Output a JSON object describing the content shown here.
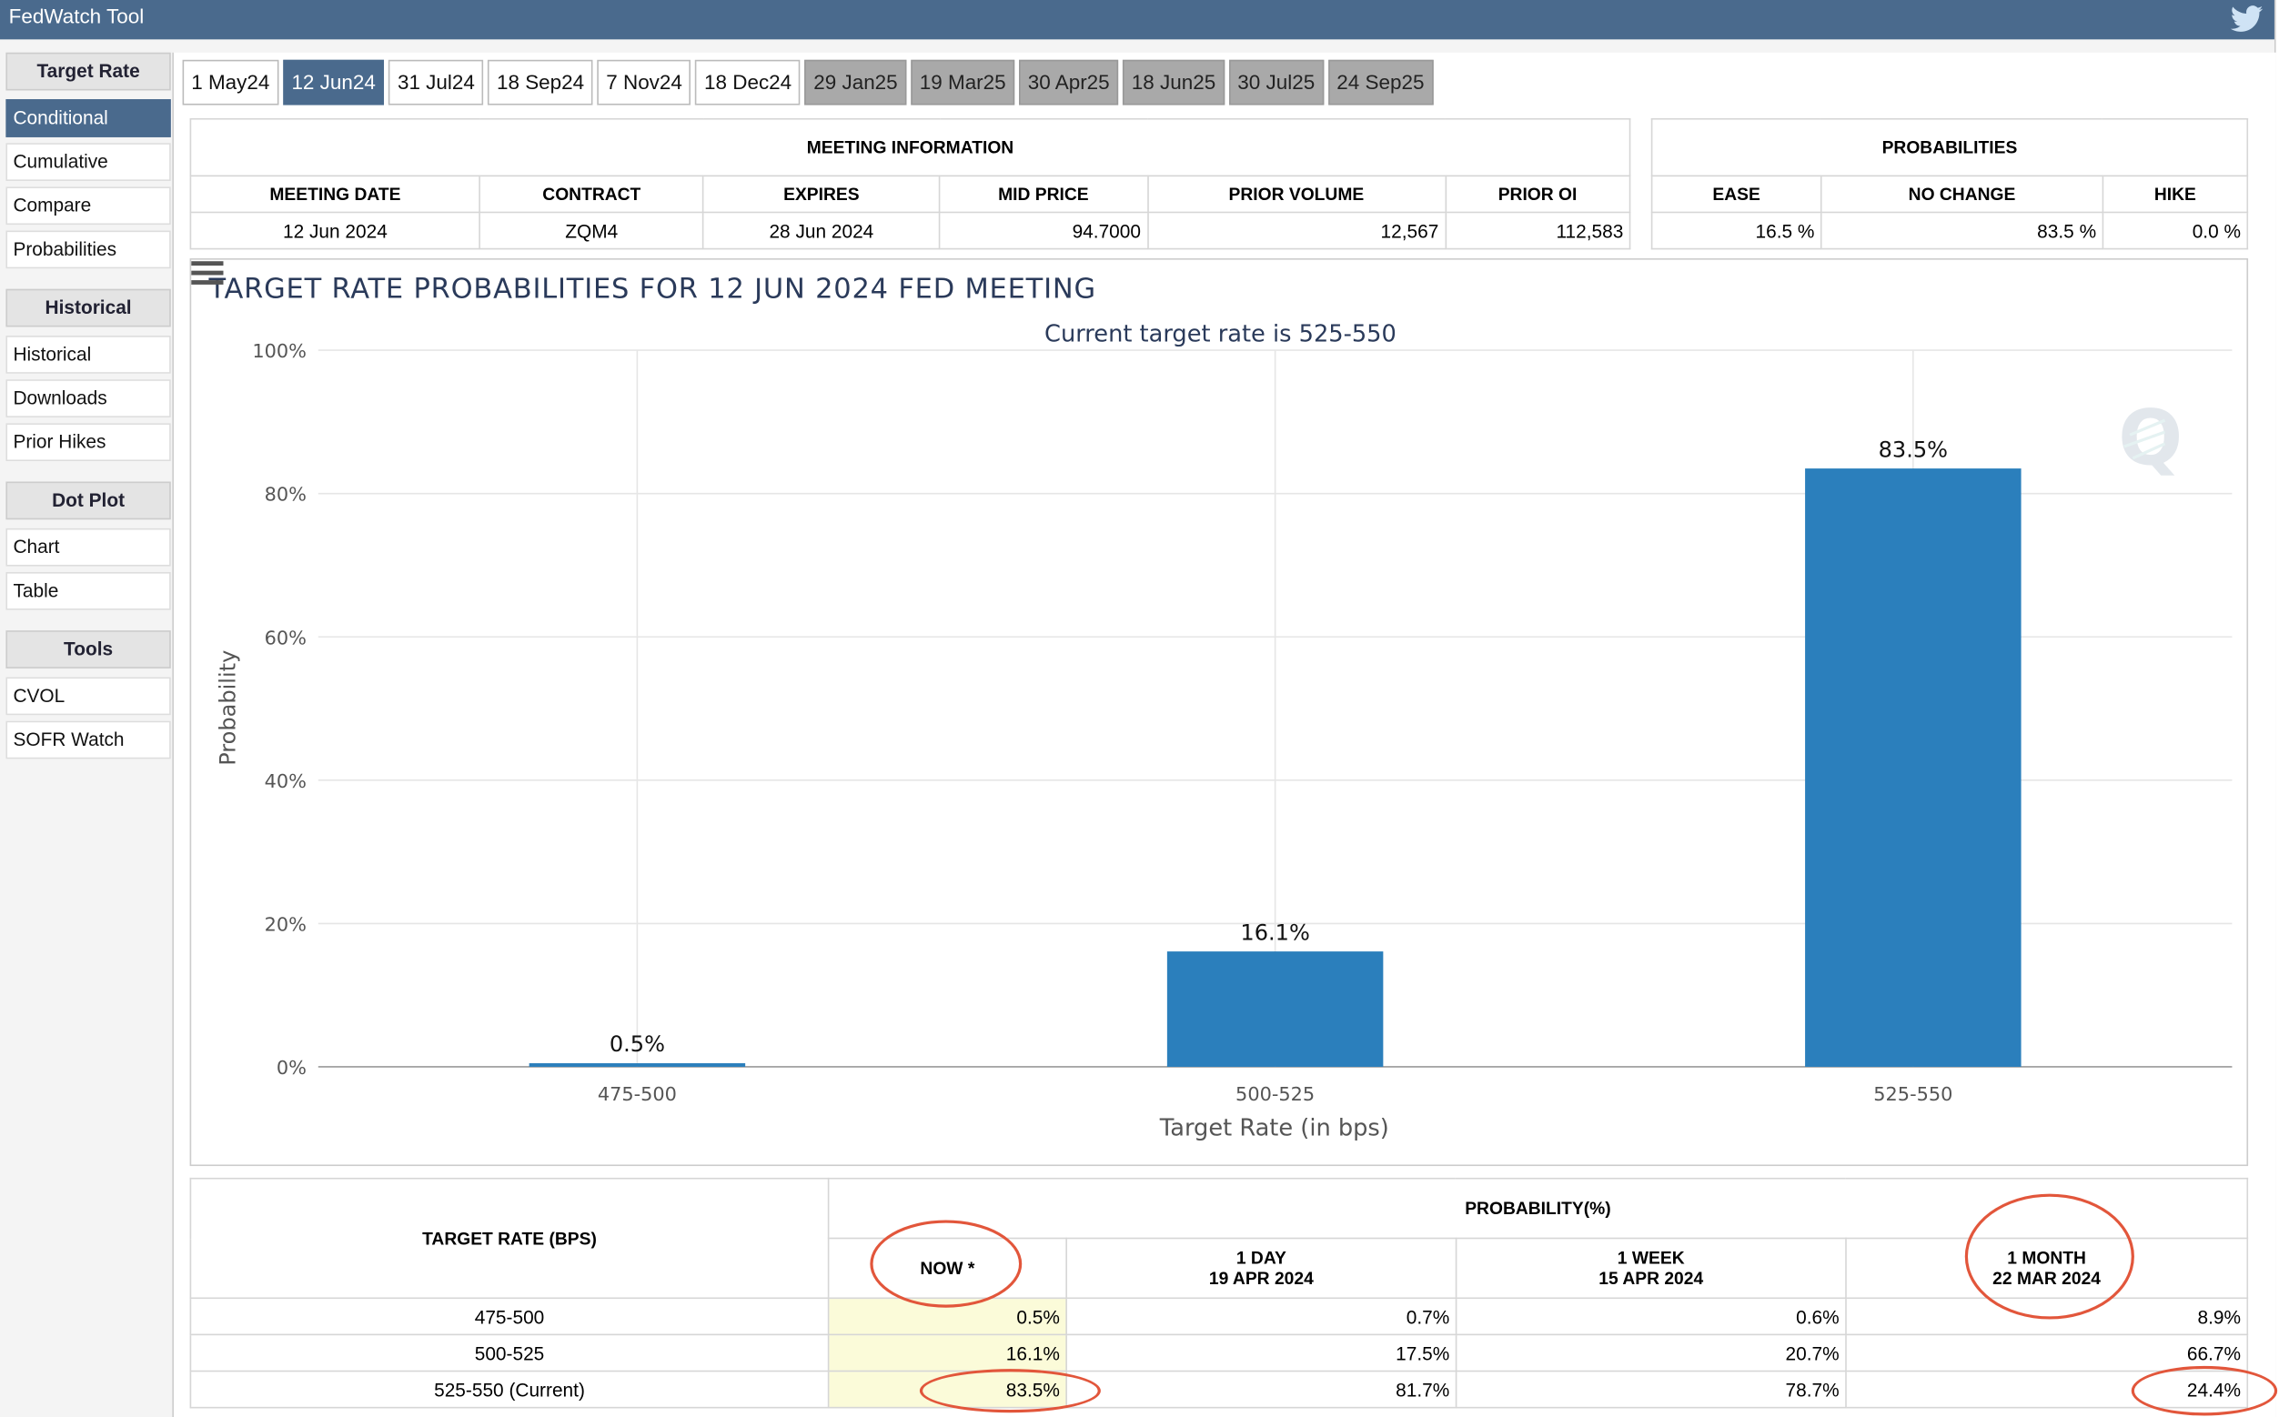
{
  "app": {
    "title": "FedWatch Tool"
  },
  "sidebar": {
    "groups": [
      {
        "head": "Target Rate",
        "items": [
          "Conditional",
          "Cumulative",
          "Compare",
          "Probabilities"
        ]
      },
      {
        "head": "Historical",
        "items": [
          "Historical",
          "Downloads",
          "Prior Hikes"
        ]
      },
      {
        "head": "Dot Plot",
        "items": [
          "Chart",
          "Table"
        ]
      },
      {
        "head": "Tools",
        "items": [
          "CVOL",
          "SOFR Watch"
        ]
      }
    ]
  },
  "tabs": [
    "1 May24",
    "12 Jun24",
    "31 Jul24",
    "18 Sep24",
    "7 Nov24",
    "18 Dec24",
    "29 Jan25",
    "19 Mar25",
    "30 Apr25",
    "18 Jun25",
    "30 Jul25",
    "24 Sep25"
  ],
  "meeting": {
    "header": "MEETING INFORMATION",
    "cols": [
      "MEETING DATE",
      "CONTRACT",
      "EXPIRES",
      "MID PRICE",
      "PRIOR VOLUME",
      "PRIOR OI"
    ],
    "values": [
      "12 Jun 2024",
      "ZQM4",
      "28 Jun 2024",
      "94.7000",
      "12,567",
      "112,583"
    ]
  },
  "probabilities": {
    "header": "PROBABILITIES",
    "cols": [
      "EASE",
      "NO CHANGE",
      "HIKE"
    ],
    "values": [
      "16.5 %",
      "83.5 %",
      "0.0 %"
    ]
  },
  "chart_data": {
    "type": "bar",
    "title": "TARGET RATE PROBABILITIES FOR 12 JUN 2024 FED MEETING",
    "subtitle": "Current target rate is 525-550",
    "xlabel": "Target Rate (in bps)",
    "ylabel": "Probability",
    "categories": [
      "475-500",
      "500-525",
      "525-550"
    ],
    "values": [
      0.5,
      16.1,
      83.5
    ],
    "data_labels": [
      "0.5%",
      "16.1%",
      "83.5%"
    ],
    "ylim": [
      0,
      100
    ],
    "yticks": [
      "0%",
      "20%",
      "40%",
      "60%",
      "80%",
      "100%"
    ],
    "bar_color": "#2b7fbc",
    "grid": true
  },
  "bottom_table": {
    "col_target": "TARGET RATE (BPS)",
    "col_prob": "PROBABILITY(%)",
    "sub": [
      {
        "l1": "NOW *",
        "l2": ""
      },
      {
        "l1": "1 DAY",
        "l2": "19 APR 2024"
      },
      {
        "l1": "1 WEEK",
        "l2": "15 APR 2024"
      },
      {
        "l1": "1 MONTH",
        "l2": "22 MAR 2024"
      }
    ],
    "rows": [
      {
        "rate": "475-500",
        "vals": [
          "0.5%",
          "0.7%",
          "0.6%",
          "8.9%"
        ]
      },
      {
        "rate": "500-525",
        "vals": [
          "16.1%",
          "17.5%",
          "20.7%",
          "66.7%"
        ]
      },
      {
        "rate": "525-550 (Current)",
        "vals": [
          "83.5%",
          "81.7%",
          "78.7%",
          "24.4%"
        ]
      }
    ]
  },
  "colors": {
    "header": "#4a6a8d",
    "annotation": "#e2563b",
    "now_bg": "#fbfbd9"
  }
}
